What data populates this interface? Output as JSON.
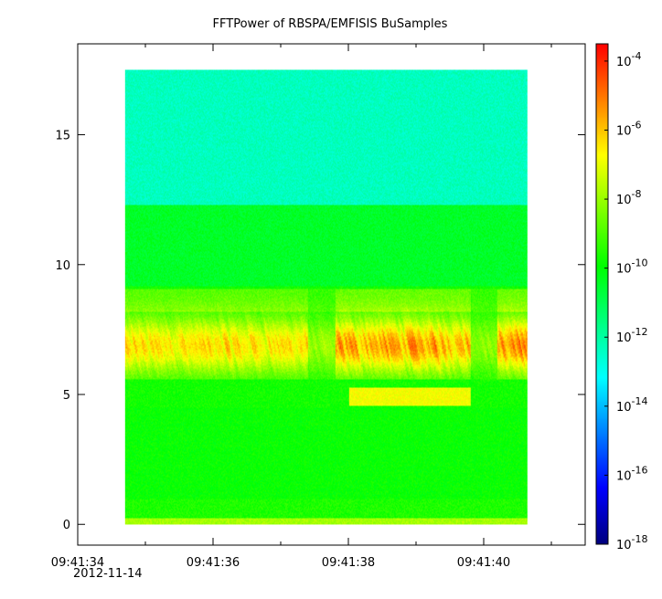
{
  "chart_data": {
    "type": "heatmap",
    "title": "FFTPower of RBSPA/EMFISIS  BuSamples",
    "xlabel": "",
    "ylabel": "",
    "x": {
      "start_seconds": 34,
      "end_seconds": 41.5,
      "data_start_seconds": 34.7,
      "data_end_seconds": 40.65,
      "tick_values_seconds": [
        34,
        36,
        38,
        40
      ],
      "tick_labels": [
        "09:41:34",
        "09:41:36",
        "09:41:38",
        "09:41:40"
      ],
      "minor_tick_values_seconds": [
        35,
        37,
        39,
        41
      ],
      "date_label": "2012-11-14"
    },
    "y": {
      "ylim": [
        -0.8,
        18.5
      ],
      "data_range": [
        0,
        17.5
      ],
      "tick_values": [
        0,
        5,
        10,
        15
      ],
      "tick_labels": [
        "0",
        "5",
        "10",
        "15"
      ]
    },
    "colorbar": {
      "scale": "log",
      "range_exponents": [
        -18,
        -3.5
      ],
      "tick_exponents": [
        -4,
        -6,
        -8,
        -10,
        -12,
        -14,
        -16,
        -18
      ],
      "tick_bases": [
        "10",
        "10",
        "10",
        "10",
        "10",
        "10",
        "10",
        "10"
      ],
      "tick_powers": [
        "-4",
        "-6",
        "-8",
        "-10",
        "-12",
        "-14",
        "-16",
        "-18"
      ],
      "colors": [
        "#00007f",
        "#0000ff",
        "#007fff",
        "#00ffff",
        "#00ff7f",
        "#00ff00",
        "#7fff00",
        "#ffff00",
        "#ff7f00",
        "#ff0000"
      ]
    },
    "grid": false,
    "colorbar_placement": "right"
  }
}
